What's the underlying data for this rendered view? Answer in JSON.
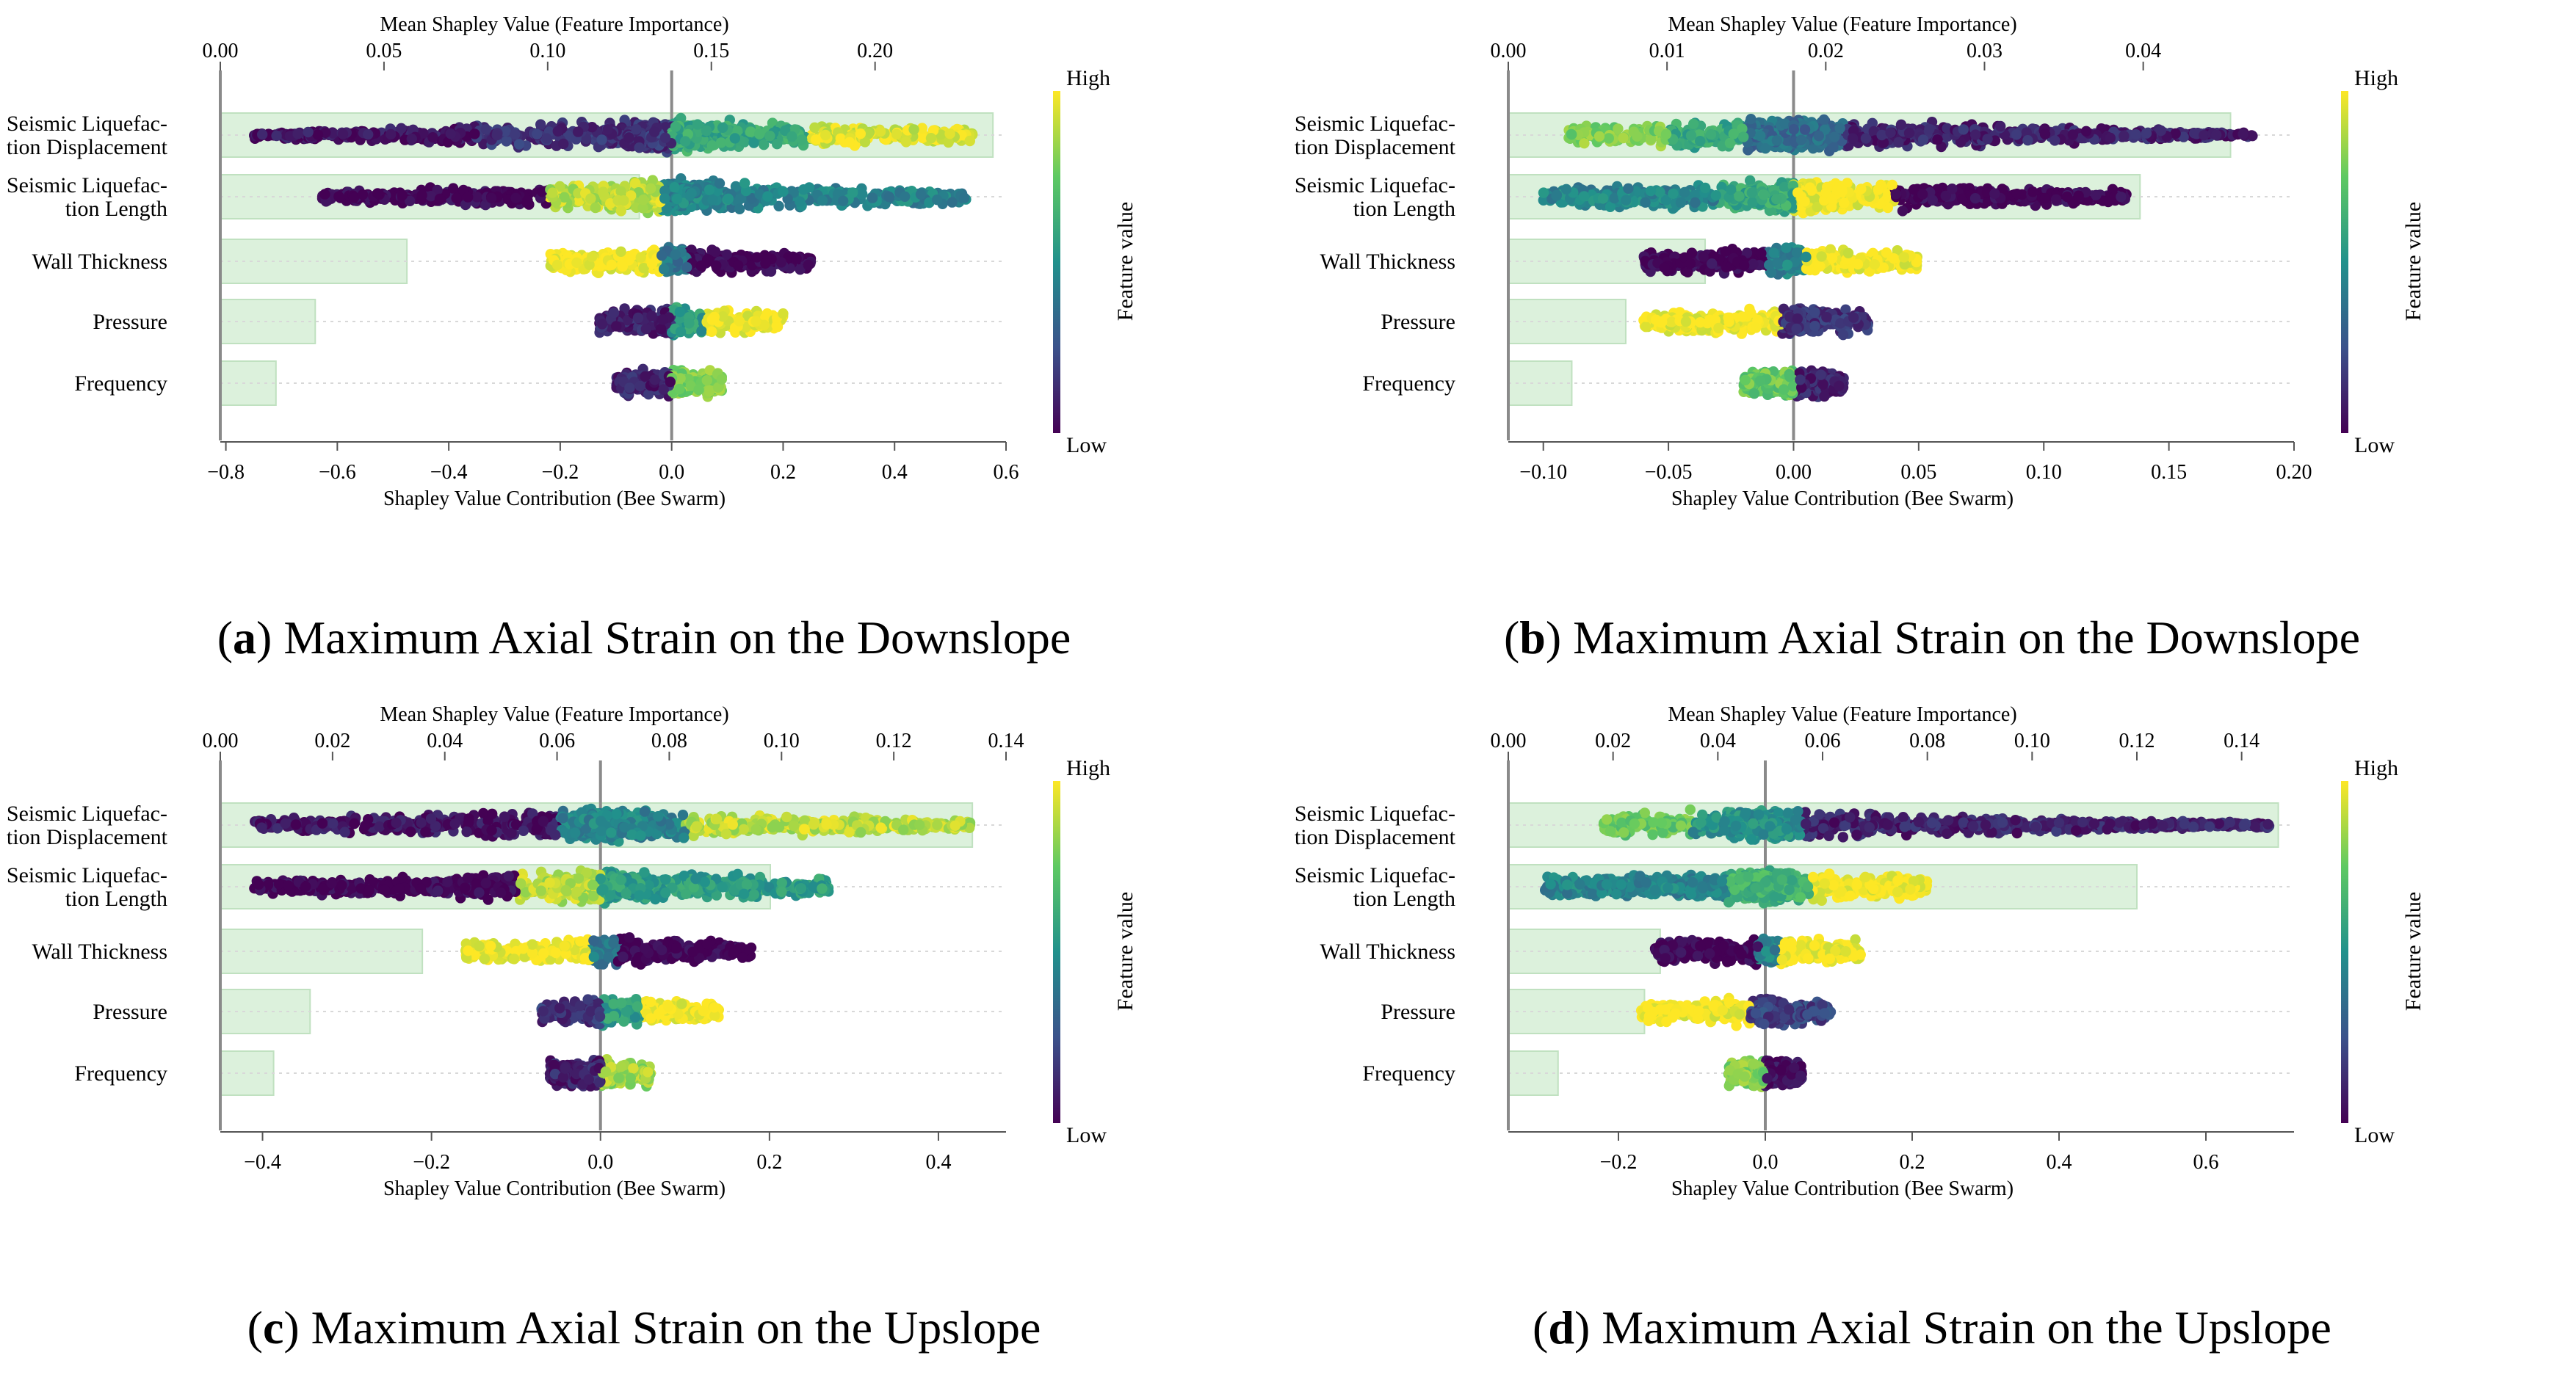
{
  "colors": {
    "bar_fill": "#d6efd6",
    "bar_stroke": "#b6dcb6",
    "axis": "#8a8a8a",
    "colormap": [
      "#440154",
      "#3b528b",
      "#21918c",
      "#5ec962",
      "#fde725"
    ]
  },
  "chart_data": [
    {
      "id": "a",
      "type": "beeswarm+bar",
      "caption_letter": "a",
      "caption_text": ") Maximum Axial Strain on the Downslope",
      "caption_open": "(",
      "top_axis_label": "Mean Shapley Value (Feature Importance)",
      "bottom_axis_label": "Shapley Value Contribution (Bee Swarm)",
      "colorbar_label": "Feature value",
      "colorbar_high": "High",
      "colorbar_low": "Low",
      "features": [
        "Seismic Liquefac-\ntion Displacement",
        "Seismic Liquefac-\ntion Length",
        "Wall Thickness",
        "Pressure",
        "Frequency"
      ],
      "top_xlim": [
        0.0,
        0.24
      ],
      "top_ticks": [
        0.0,
        0.05,
        0.1,
        0.15,
        0.2
      ],
      "top_tick_labels": [
        "0.00",
        "0.05",
        "0.10",
        "0.15",
        "0.20"
      ],
      "mean_shap": [
        0.236,
        0.128,
        0.057,
        0.029,
        0.017
      ],
      "bottom_xlim": [
        -0.81,
        0.6
      ],
      "bottom_ticks": [
        -0.8,
        -0.6,
        -0.4,
        -0.2,
        0.0,
        0.2,
        0.4,
        0.6
      ],
      "bottom_tick_labels": [
        "−0.8",
        "−0.6",
        "−0.4",
        "−0.2",
        "0.0",
        "0.2",
        "0.4",
        "0.6"
      ],
      "swarm": [
        {
          "min": -0.75,
          "max": 0.54,
          "segments": [
            [
              -0.75,
              -0.35,
              0.05
            ],
            [
              -0.35,
              0.0,
              0.15
            ],
            [
              0.0,
              0.25,
              0.6
            ],
            [
              0.25,
              0.54,
              0.95
            ]
          ]
        },
        {
          "min": -0.63,
          "max": 0.53,
          "segments": [
            [
              -0.63,
              -0.22,
              0.0
            ],
            [
              -0.22,
              -0.02,
              0.9
            ],
            [
              -0.02,
              0.53,
              0.45
            ]
          ]
        },
        {
          "min": -0.22,
          "max": 0.25,
          "segments": [
            [
              -0.22,
              -0.02,
              1.0
            ],
            [
              -0.02,
              0.03,
              0.4
            ],
            [
              0.03,
              0.25,
              0.0
            ]
          ]
        },
        {
          "min": -0.13,
          "max": 0.2,
          "segments": [
            [
              -0.13,
              0.0,
              0.1
            ],
            [
              0.0,
              0.06,
              0.55
            ],
            [
              0.06,
              0.2,
              1.0
            ]
          ]
        },
        {
          "min": -0.1,
          "max": 0.09,
          "segments": [
            [
              -0.1,
              0.0,
              0.1
            ],
            [
              0.0,
              0.09,
              0.8
            ]
          ]
        }
      ]
    },
    {
      "id": "b",
      "type": "beeswarm+bar",
      "caption_letter": "b",
      "caption_text": ") Maximum Axial Strain on the Downslope",
      "caption_open": "(",
      "top_axis_label": "Mean Shapley Value (Feature Importance)",
      "bottom_axis_label": "Shapley Value Contribution (Bee Swarm)",
      "colorbar_label": "Feature value",
      "colorbar_high": "High",
      "colorbar_low": "Low",
      "features": [
        "Seismic Liquefac-\ntion Displacement",
        "Seismic Liquefac-\ntion Length",
        "Wall Thickness",
        "Pressure",
        "Frequency"
      ],
      "top_xlim": [
        0.0,
        0.0495
      ],
      "top_ticks": [
        0.0,
        0.01,
        0.02,
        0.03,
        0.04
      ],
      "top_tick_labels": [
        "0.00",
        "0.01",
        "0.02",
        "0.03",
        "0.04"
      ],
      "mean_shap": [
        0.0455,
        0.0398,
        0.0124,
        0.0074,
        0.004
      ],
      "bottom_xlim": [
        -0.114,
        0.2
      ],
      "bottom_ticks": [
        -0.1,
        -0.05,
        0.0,
        0.05,
        0.1,
        0.15,
        0.2
      ],
      "bottom_tick_labels": [
        "−0.10",
        "−0.05",
        "0.00",
        "0.05",
        "0.10",
        "0.15",
        "0.20"
      ],
      "swarm": [
        {
          "min": -0.09,
          "max": 0.185,
          "segments": [
            [
              -0.09,
              -0.05,
              0.8
            ],
            [
              -0.05,
              -0.02,
              0.6
            ],
            [
              -0.02,
              0.02,
              0.35
            ],
            [
              0.02,
              0.185,
              0.1
            ]
          ]
        },
        {
          "min": -0.1,
          "max": 0.133,
          "segments": [
            [
              -0.1,
              -0.03,
              0.45
            ],
            [
              -0.03,
              0.0,
              0.6
            ],
            [
              0.0,
              0.04,
              1.0
            ],
            [
              0.04,
              0.133,
              0.0
            ]
          ]
        },
        {
          "min": -0.06,
          "max": 0.05,
          "segments": [
            [
              -0.06,
              -0.01,
              0.0
            ],
            [
              -0.01,
              0.005,
              0.45
            ],
            [
              0.005,
              0.05,
              1.0
            ]
          ]
        },
        {
          "min": -0.06,
          "max": 0.03,
          "segments": [
            [
              -0.06,
              -0.005,
              1.0
            ],
            [
              -0.005,
              0.03,
              0.15
            ]
          ]
        },
        {
          "min": -0.02,
          "max": 0.02,
          "segments": [
            [
              -0.02,
              0.0,
              0.75
            ],
            [
              0.0,
              0.02,
              0.1
            ]
          ]
        }
      ]
    },
    {
      "id": "c",
      "type": "beeswarm+bar",
      "caption_letter": "c",
      "caption_text": ") Maximum Axial Strain on the Upslope",
      "caption_open": "(",
      "top_axis_label": "Mean Shapley Value (Feature Importance)",
      "bottom_axis_label": "Shapley Value Contribution (Bee Swarm)",
      "colorbar_label": "Feature value",
      "colorbar_high": "High",
      "colorbar_low": "Low",
      "features": [
        "Seismic Liquefac-\ntion Displacement",
        "Seismic Liquefac-\ntion Length",
        "Wall Thickness",
        "Pressure",
        "Frequency"
      ],
      "top_xlim": [
        0.0,
        0.14
      ],
      "top_ticks": [
        0.0,
        0.02,
        0.04,
        0.06,
        0.08,
        0.1,
        0.12,
        0.14
      ],
      "top_tick_labels": [
        "0.00",
        "0.02",
        "0.04",
        "0.06",
        "0.08",
        "0.10",
        "0.12",
        "0.14"
      ],
      "mean_shap": [
        0.134,
        0.098,
        0.036,
        0.016,
        0.0095
      ],
      "bottom_xlim": [
        -0.45,
        0.48
      ],
      "bottom_ticks": [
        -0.4,
        -0.2,
        0.0,
        0.2,
        0.4
      ],
      "bottom_tick_labels": [
        "−0.4",
        "−0.2",
        "0.0",
        "0.2",
        "0.4"
      ],
      "swarm": [
        {
          "min": -0.41,
          "max": 0.44,
          "segments": [
            [
              -0.41,
              -0.05,
              0.05
            ],
            [
              -0.05,
              0.1,
              0.45
            ],
            [
              0.1,
              0.44,
              0.9
            ]
          ]
        },
        {
          "min": -0.41,
          "max": 0.27,
          "segments": [
            [
              -0.41,
              -0.1,
              0.0
            ],
            [
              -0.1,
              0.0,
              0.9
            ],
            [
              0.0,
              0.27,
              0.55
            ]
          ]
        },
        {
          "min": -0.16,
          "max": 0.18,
          "segments": [
            [
              -0.16,
              -0.01,
              1.0
            ],
            [
              -0.01,
              0.02,
              0.4
            ],
            [
              0.02,
              0.18,
              0.0
            ]
          ]
        },
        {
          "min": -0.07,
          "max": 0.14,
          "segments": [
            [
              -0.07,
              0.0,
              0.15
            ],
            [
              0.0,
              0.05,
              0.55
            ],
            [
              0.05,
              0.14,
              1.0
            ]
          ]
        },
        {
          "min": -0.06,
          "max": 0.06,
          "segments": [
            [
              -0.06,
              0.0,
              0.1
            ],
            [
              0.0,
              0.06,
              0.85
            ]
          ]
        }
      ]
    },
    {
      "id": "d",
      "type": "beeswarm+bar",
      "caption_letter": "d",
      "caption_text": ") Maximum Axial Strain on the Upslope",
      "caption_open": "(",
      "top_axis_label": "Mean Shapley Value (Feature Importance)",
      "bottom_axis_label": "Shapley Value Contribution (Bee Swarm)",
      "colorbar_label": "Feature value",
      "colorbar_high": "High",
      "colorbar_low": "Low",
      "features": [
        "Seismic Liquefac-\ntion Displacement",
        "Seismic Liquefac-\ntion Length",
        "Wall Thickness",
        "Pressure",
        "Frequency"
      ],
      "top_xlim": [
        0.0,
        0.15
      ],
      "top_ticks": [
        0.0,
        0.02,
        0.04,
        0.06,
        0.08,
        0.1,
        0.12,
        0.14
      ],
      "top_tick_labels": [
        "0.00",
        "0.02",
        "0.04",
        "0.06",
        "0.08",
        "0.10",
        "0.12",
        "0.14"
      ],
      "mean_shap": [
        0.147,
        0.12,
        0.029,
        0.026,
        0.0095
      ],
      "bottom_xlim": [
        -0.35,
        0.72
      ],
      "bottom_ticks": [
        -0.2,
        0.0,
        0.2,
        0.4,
        0.6
      ],
      "bottom_tick_labels": [
        "−0.2",
        "0.0",
        "0.2",
        "0.4",
        "0.6"
      ],
      "swarm": [
        {
          "min": -0.22,
          "max": 0.69,
          "segments": [
            [
              -0.22,
              -0.1,
              0.75
            ],
            [
              -0.1,
              0.05,
              0.5
            ],
            [
              0.05,
              0.69,
              0.1
            ]
          ]
        },
        {
          "min": -0.3,
          "max": 0.22,
          "segments": [
            [
              -0.3,
              -0.05,
              0.45
            ],
            [
              -0.05,
              0.06,
              0.65
            ],
            [
              0.06,
              0.22,
              1.0
            ]
          ]
        },
        {
          "min": -0.15,
          "max": 0.13,
          "segments": [
            [
              -0.15,
              -0.01,
              0.0
            ],
            [
              -0.01,
              0.02,
              0.45
            ],
            [
              0.02,
              0.13,
              1.0
            ]
          ]
        },
        {
          "min": -0.17,
          "max": 0.09,
          "segments": [
            [
              -0.17,
              -0.02,
              1.0
            ],
            [
              -0.02,
              0.09,
              0.2
            ]
          ]
        },
        {
          "min": -0.05,
          "max": 0.05,
          "segments": [
            [
              -0.05,
              0.0,
              0.8
            ],
            [
              0.0,
              0.05,
              0.05
            ]
          ]
        }
      ]
    }
  ]
}
